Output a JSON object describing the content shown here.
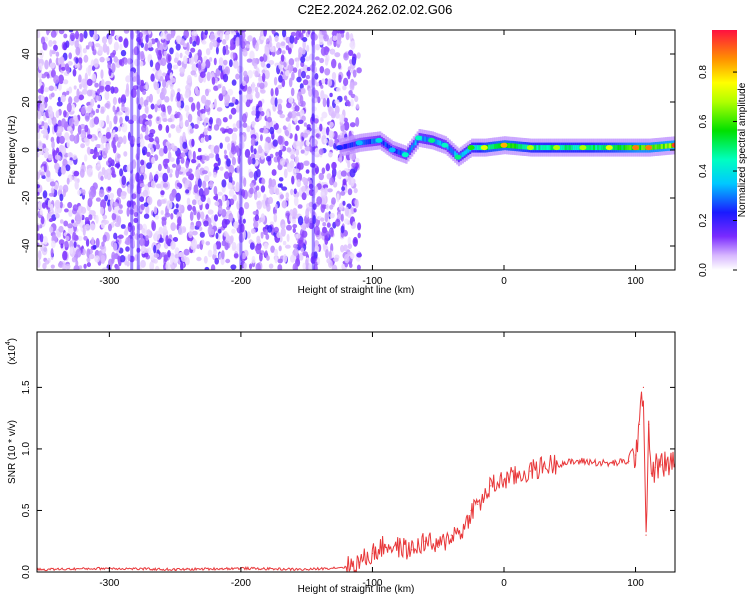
{
  "title": "C2E2.2024.262.02.02.G06",
  "chart_data": [
    {
      "type": "heatmap",
      "xlabel": "Height of straight line (km)",
      "ylabel": "Frequency (Hz)",
      "xlim": [
        -355,
        130
      ],
      "ylim": [
        -50,
        50
      ],
      "xticks": [
        -300,
        -200,
        -100,
        0,
        100
      ],
      "yticks": [
        -40,
        -20,
        0,
        20,
        40
      ],
      "colorbar": {
        "label": "Normalized spectral amplitude",
        "range": [
          0,
          0.97
        ],
        "ticks": [
          0.0,
          0.2,
          0.4,
          0.6,
          0.8
        ]
      },
      "noise_region_x": [
        -355,
        -110
      ],
      "trace": {
        "x": [
          -125,
          -110,
          -95,
          -85,
          -75,
          -65,
          -55,
          -45,
          -35,
          -25,
          -15,
          0,
          20,
          40,
          60,
          80,
          100,
          110,
          130
        ],
        "frequency": [
          1,
          3,
          4,
          0,
          -2,
          5,
          4,
          2,
          -3,
          1,
          1,
          2,
          1,
          1,
          1,
          1,
          1,
          1,
          2
        ],
        "amplitude": [
          0.25,
          0.35,
          0.4,
          0.35,
          0.45,
          0.45,
          0.5,
          0.45,
          0.5,
          0.6,
          0.75,
          0.85,
          0.7,
          0.7,
          0.7,
          0.75,
          0.9,
          0.9,
          0.95
        ]
      }
    },
    {
      "type": "line",
      "xlabel": "Height of straight line (km)",
      "ylabel": "SNR (10 * v/v)",
      "yscale_label": "(x10",
      "yscale_exp": "4",
      "xlim": [
        -355,
        130
      ],
      "ylim": [
        0,
        1.95
      ],
      "xticks": [
        -300,
        -200,
        -100,
        0,
        100
      ],
      "yticks": [
        0.0,
        0.5,
        1.0,
        1.5
      ],
      "series": [
        {
          "color": "#e8383a",
          "x": [
            -355,
            -300,
            -250,
            -200,
            -150,
            -120,
            -110,
            -100,
            -90,
            -80,
            -70,
            -60,
            -50,
            -40,
            -30,
            -25,
            -20,
            -15,
            -10,
            -5,
            0,
            10,
            20,
            30,
            40,
            60,
            80,
            95,
            100,
            103,
            106,
            108,
            110,
            112,
            115,
            120,
            130
          ],
          "y": [
            0.02,
            0.03,
            0.02,
            0.03,
            0.02,
            0.04,
            0.08,
            0.15,
            0.22,
            0.2,
            0.18,
            0.25,
            0.2,
            0.3,
            0.35,
            0.5,
            0.55,
            0.6,
            0.7,
            0.72,
            0.75,
            0.78,
            0.82,
            0.86,
            0.88,
            0.9,
            0.88,
            0.9,
            0.95,
            1.2,
            1.5,
            0.3,
            1.2,
            0.8,
            0.85,
            0.87,
            0.88
          ]
        }
      ]
    }
  ]
}
